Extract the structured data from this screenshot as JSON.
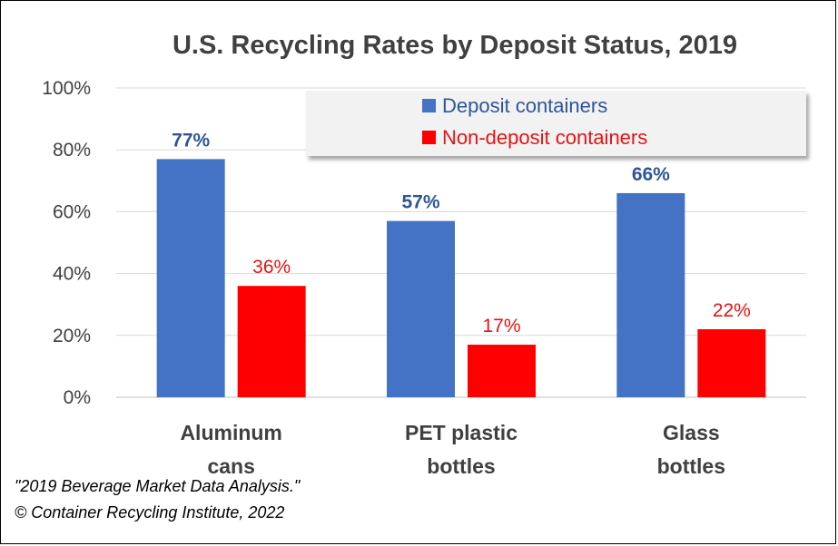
{
  "chart_data": {
    "type": "bar",
    "title": "U.S. Recycling Rates by Deposit Status, 2019",
    "categories": [
      [
        "Aluminum",
        "cans"
      ],
      [
        "PET plastic",
        "bottles"
      ],
      [
        "Glass",
        "bottles"
      ]
    ],
    "series": [
      {
        "name": "Deposit containers",
        "values": [
          77,
          57,
          66
        ],
        "labels": [
          "77%",
          "57%",
          "66%"
        ],
        "color": "#4472C4",
        "label_color": "#2F5597"
      },
      {
        "name": "Non-deposit containers",
        "values": [
          36,
          17,
          22
        ],
        "labels": [
          "36%",
          "17%",
          "22%"
        ],
        "color": "#FF0000",
        "label_color": "#E31414"
      }
    ],
    "ylim": [
      0,
      100
    ],
    "yticks": [
      0,
      20,
      40,
      60,
      80,
      100
    ],
    "ytick_labels": [
      "0%",
      "20%",
      "40%",
      "60%",
      "80%",
      "100%"
    ],
    "grid": true,
    "legend_position": "top-right"
  },
  "source": {
    "line1": "\"2019 Beverage Market Data Analysis.\"",
    "line2": "© Container Recycling Institute, 2022"
  }
}
